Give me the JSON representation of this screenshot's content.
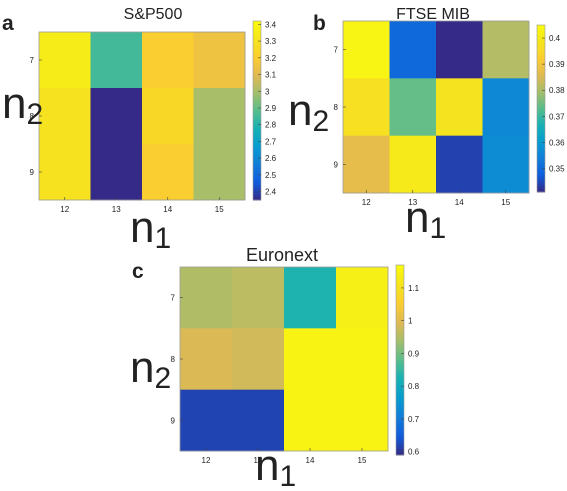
{
  "chart_data": [
    {
      "type": "heatmap",
      "panel_label": "a",
      "title": "S&P500",
      "xlabel_main": "n",
      "xlabel_sub": "1",
      "ylabel_main": "n",
      "ylabel_sub": "2",
      "x": [
        "12",
        "13",
        "14",
        "15"
      ],
      "y": [
        "7",
        "8",
        "9"
      ],
      "values": [
        [
          3.35,
          2.85,
          3.2,
          3.15
        ],
        [
          3.3,
          2.35,
          3.25,
          3.0
        ],
        [
          3.3,
          2.35,
          3.2,
          3.0
        ]
      ],
      "colorbar_ticks": [
        "3.4",
        "3.3",
        "3.2",
        "3.1",
        "3",
        "2.9",
        "2.8",
        "2.7",
        "2.6",
        "2.5",
        "2.4"
      ],
      "clim": [
        2.35,
        3.42
      ],
      "colormap": "parula"
    },
    {
      "type": "heatmap",
      "panel_label": "b",
      "title": "FTSE MIB",
      "xlabel_main": "n",
      "xlabel_sub": "1",
      "ylabel_main": "n",
      "ylabel_sub": "2",
      "x": [
        "12",
        "13",
        "14",
        "15"
      ],
      "y": [
        "7",
        "8",
        "9"
      ],
      "values": [
        [
          0.403,
          0.35,
          0.34,
          0.381
        ],
        [
          0.397,
          0.374,
          0.398,
          0.356
        ],
        [
          0.387,
          0.4,
          0.344,
          0.357
        ]
      ],
      "colorbar_ticks": [
        "0.4",
        "0.39",
        "0.38",
        "0.37",
        "0.36",
        "0.35"
      ],
      "clim": [
        0.341,
        0.405
      ],
      "colormap": "parula"
    },
    {
      "type": "heatmap",
      "panel_label": "c",
      "title": "Euronext",
      "xlabel_main": "n",
      "xlabel_sub": "1",
      "ylabel_main": "n",
      "ylabel_sub": "2",
      "x": [
        "12",
        "13",
        "14",
        "15"
      ],
      "y": [
        "7",
        "8",
        "9"
      ],
      "values": [
        [
          0.95,
          0.96,
          0.83,
          1.14
        ],
        [
          0.99,
          0.98,
          1.15,
          1.15
        ],
        [
          0.62,
          0.62,
          1.15,
          1.15
        ]
      ],
      "colorbar_ticks": [
        "1.1",
        "1",
        "0.9",
        "0.8",
        "0.7",
        "0.6"
      ],
      "clim": [
        0.59,
        1.17
      ],
      "colormap": "parula"
    }
  ]
}
